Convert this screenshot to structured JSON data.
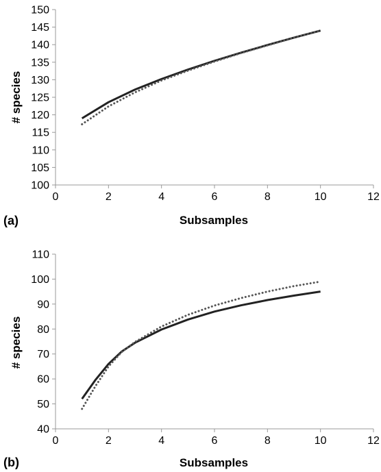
{
  "chart_data": [
    {
      "panel_label": "(a)",
      "type": "line",
      "xlabel": "Subsamples",
      "ylabel": "# species",
      "xlim": [
        0,
        12
      ],
      "ylim": [
        100,
        150
      ],
      "xticks": [
        0,
        2,
        4,
        6,
        8,
        10,
        12
      ],
      "yticks": [
        100,
        105,
        110,
        115,
        120,
        125,
        130,
        135,
        140,
        145,
        150
      ],
      "grid": false,
      "legend": "none",
      "series": [
        {
          "style": "solid",
          "color": "#222222",
          "x": [
            1,
            2,
            3,
            4,
            5,
            6,
            7,
            8,
            9,
            10
          ],
          "y": [
            119,
            123.6,
            127.2,
            130.2,
            132.9,
            135.4,
            137.7,
            139.9,
            142.0,
            144.0
          ]
        },
        {
          "style": "dotted",
          "color": "#555555",
          "x": [
            1,
            2,
            3,
            4,
            5,
            6,
            7,
            8,
            9,
            10
          ],
          "y": [
            117.3,
            122.4,
            126.4,
            129.8,
            132.6,
            135.2,
            137.6,
            139.8,
            142.0,
            144.0
          ]
        }
      ]
    },
    {
      "panel_label": "(b)",
      "type": "line",
      "xlabel": "Subsamples",
      "ylabel": "# species",
      "xlim": [
        0,
        12
      ],
      "ylim": [
        40,
        110
      ],
      "xticks": [
        0,
        2,
        4,
        6,
        8,
        10,
        12
      ],
      "yticks": [
        40,
        50,
        60,
        70,
        80,
        90,
        100,
        110
      ],
      "grid": false,
      "legend": "none",
      "series": [
        {
          "style": "solid",
          "color": "#222222",
          "x": [
            1,
            1.5,
            2,
            2.5,
            3,
            4,
            5,
            6,
            7,
            8,
            9,
            10
          ],
          "y": [
            52,
            59.5,
            66,
            71,
            74.5,
            79.8,
            83.8,
            87,
            89.5,
            91.6,
            93.4,
            95
          ]
        },
        {
          "style": "dotted",
          "color": "#555555",
          "x": [
            1,
            1.5,
            2,
            2.5,
            3,
            4,
            5,
            6,
            7,
            8,
            9,
            10
          ],
          "y": [
            48,
            57,
            65,
            70.8,
            74.8,
            81,
            85.7,
            89.4,
            92.4,
            95,
            97.2,
            99
          ]
        }
      ]
    }
  ]
}
